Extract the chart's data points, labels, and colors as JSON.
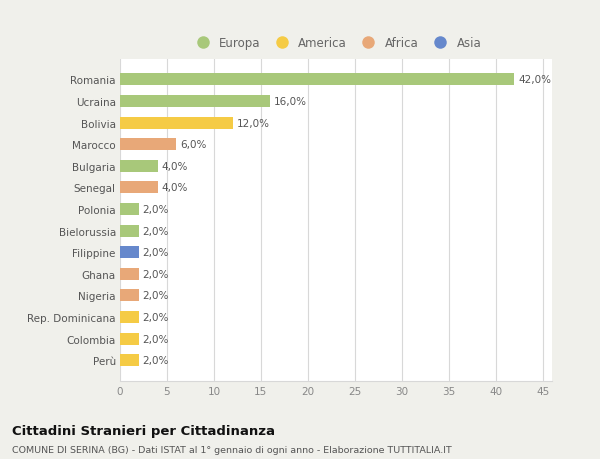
{
  "categories": [
    "Romania",
    "Ucraina",
    "Bolivia",
    "Marocco",
    "Bulgaria",
    "Senegal",
    "Polonia",
    "Bielorussia",
    "Filippine",
    "Ghana",
    "Nigeria",
    "Rep. Dominicana",
    "Colombia",
    "Perù"
  ],
  "values": [
    42.0,
    16.0,
    12.0,
    6.0,
    4.0,
    4.0,
    2.0,
    2.0,
    2.0,
    2.0,
    2.0,
    2.0,
    2.0,
    2.0
  ],
  "continents": [
    "Europa",
    "Europa",
    "America",
    "Africa",
    "Europa",
    "Africa",
    "Europa",
    "Europa",
    "Asia",
    "Africa",
    "Africa",
    "America",
    "America",
    "America"
  ],
  "colors": {
    "Europa": "#a8c87a",
    "America": "#f5cb45",
    "Africa": "#e8a878",
    "Asia": "#6688cc"
  },
  "legend_labels": [
    "Europa",
    "America",
    "Africa",
    "Asia"
  ],
  "legend_colors": [
    "#a8c87a",
    "#f5cb45",
    "#e8a878",
    "#6688cc"
  ],
  "xlim": [
    0,
    46
  ],
  "xticks": [
    0,
    5,
    10,
    15,
    20,
    25,
    30,
    35,
    40,
    45
  ],
  "title": "Cittadini Stranieri per Cittadinanza",
  "subtitle": "COMUNE DI SERINA (BG) - Dati ISTAT al 1° gennaio di ogni anno - Elaborazione TUTTITALIA.IT",
  "page_color": "#f0f0eb",
  "plot_color": "#ffffff",
  "grid_color": "#d8d8d8",
  "label_fontsize": 7.5,
  "value_fontsize": 7.5,
  "tick_fontsize": 7.5
}
